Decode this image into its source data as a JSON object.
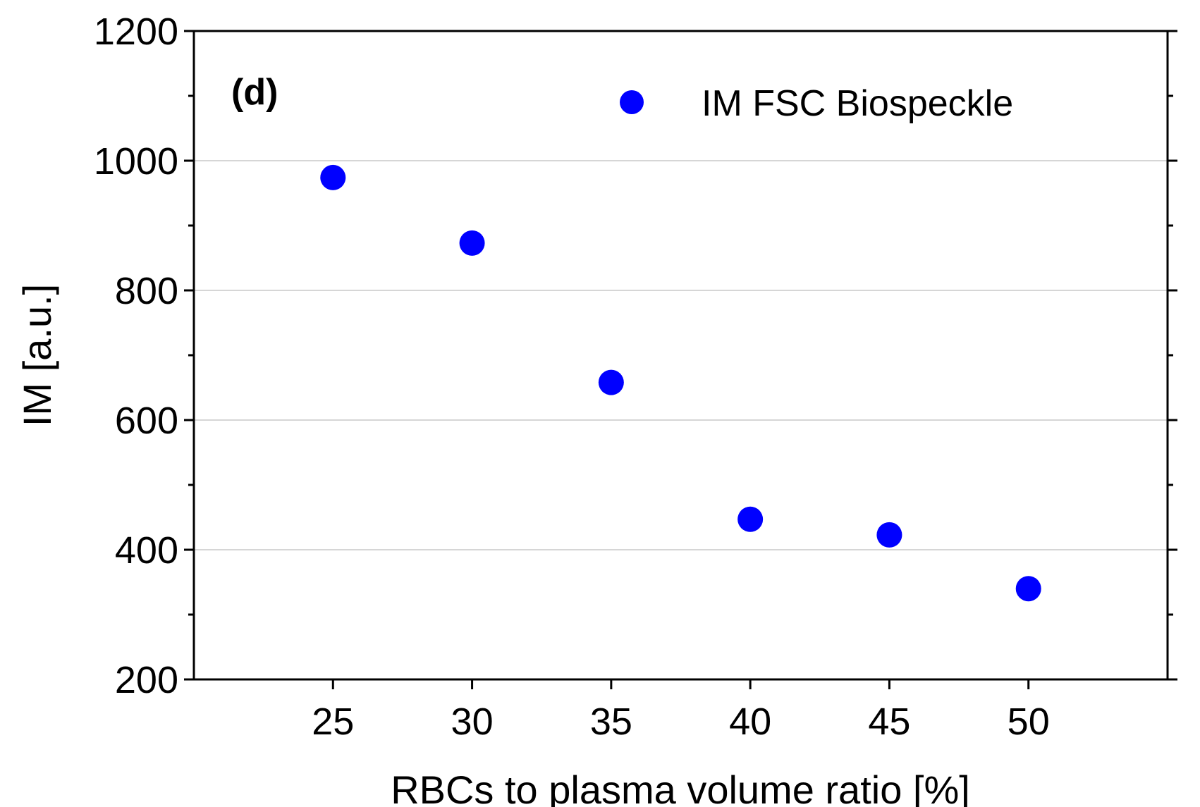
{
  "chart_data": {
    "type": "scatter",
    "panel_label": "(d)",
    "xlabel": "RBCs to plasma volume ratio [%]",
    "ylabel": "IM [a.u.]",
    "xlim": [
      20,
      55
    ],
    "ylim": [
      200,
      1200
    ],
    "x_ticks": [
      25,
      30,
      35,
      40,
      45,
      50
    ],
    "y_ticks": [
      200,
      400,
      600,
      800,
      1000,
      1200
    ],
    "y_minor_ticks": [
      300,
      500,
      700,
      900,
      1100
    ],
    "y_gridlines": [
      400,
      600,
      800,
      1000
    ],
    "grid": "horizontal",
    "legend_position": "top-right",
    "series": [
      {
        "name": "IM FSC Biospeckle",
        "color": "#0000ff",
        "marker": "circle",
        "x": [
          25,
          30,
          35,
          40,
          45,
          50
        ],
        "y": [
          974,
          873,
          658,
          447,
          423,
          340
        ]
      }
    ]
  }
}
